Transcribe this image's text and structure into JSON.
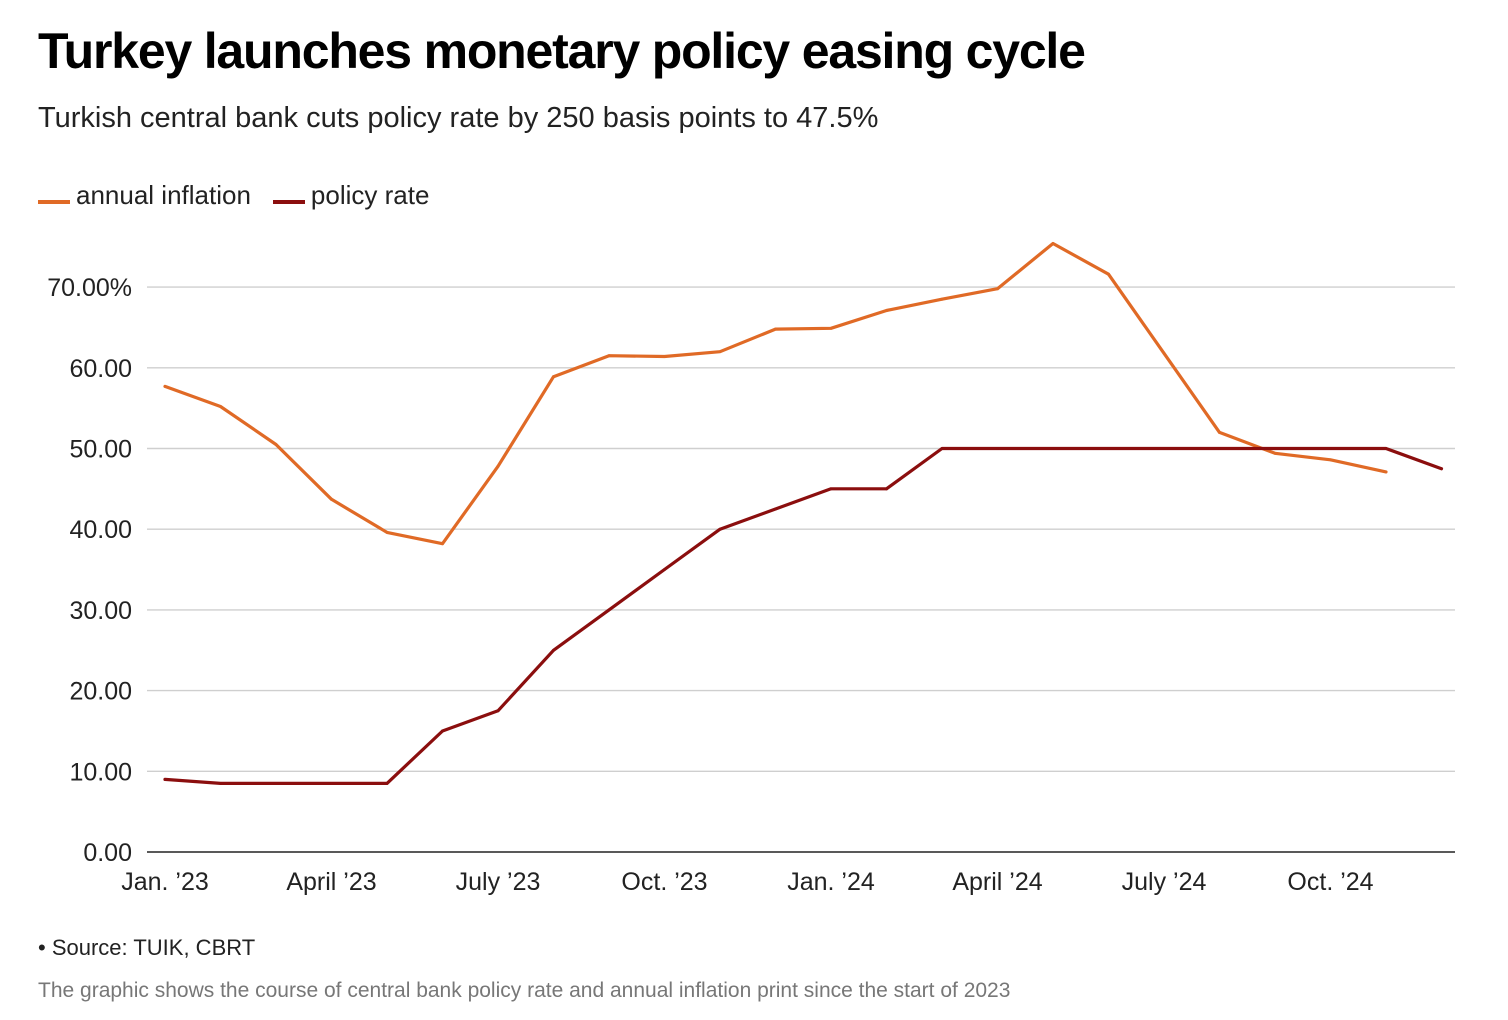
{
  "chart_data": {
    "type": "line",
    "title": "Turkey launches monetary policy easing cycle",
    "subtitle": "Turkish central bank cuts policy rate by 250 basis points to 47.5%",
    "legend_position": "top-left",
    "grid": true,
    "ylim": [
      0,
      70
    ],
    "y_ticks": [
      {
        "value": 70,
        "label": "70.00%"
      },
      {
        "value": 60,
        "label": "60.00"
      },
      {
        "value": 50,
        "label": "50.00"
      },
      {
        "value": 40,
        "label": "40.00"
      },
      {
        "value": 30,
        "label": "30.00"
      },
      {
        "value": 20,
        "label": "20.00"
      },
      {
        "value": 10,
        "label": "10.00"
      },
      {
        "value": 0,
        "label": "0.00"
      }
    ],
    "x": [
      "2023-01",
      "2023-02",
      "2023-03",
      "2023-04",
      "2023-05",
      "2023-06",
      "2023-07",
      "2023-08",
      "2023-09",
      "2023-10",
      "2023-11",
      "2023-12",
      "2024-01",
      "2024-02",
      "2024-03",
      "2024-04",
      "2024-05",
      "2024-06",
      "2024-07",
      "2024-08",
      "2024-09",
      "2024-10",
      "2024-11",
      "2024-12"
    ],
    "x_ticks": [
      {
        "index": 0,
        "label": "Jan. ’23"
      },
      {
        "index": 3,
        "label": "April ’23"
      },
      {
        "index": 6,
        "label": "July ’23"
      },
      {
        "index": 9,
        "label": "Oct. ’23"
      },
      {
        "index": 12,
        "label": "Jan. ’24"
      },
      {
        "index": 15,
        "label": "April ’24"
      },
      {
        "index": 18,
        "label": "July ’24"
      },
      {
        "index": 21,
        "label": "Oct. ’24"
      }
    ],
    "series": [
      {
        "name": "annual inflation",
        "color": "#e06a26",
        "values": [
          57.7,
          55.2,
          50.5,
          43.7,
          39.6,
          38.2,
          47.8,
          58.9,
          61.5,
          61.4,
          62.0,
          64.8,
          64.9,
          67.1,
          68.5,
          69.8,
          75.4,
          71.6,
          61.8,
          52.0,
          49.4,
          48.6,
          47.1,
          null
        ]
      },
      {
        "name": "policy rate",
        "color": "#8b0e0e",
        "values": [
          9.0,
          8.5,
          8.5,
          8.5,
          8.5,
          15.0,
          17.5,
          25.0,
          30.0,
          35.0,
          40.0,
          42.5,
          45.0,
          45.0,
          50.0,
          50.0,
          50.0,
          50.0,
          50.0,
          50.0,
          50.0,
          50.0,
          50.0,
          47.5
        ]
      }
    ]
  },
  "footer": {
    "source": "• Source: TUIK, CBRT",
    "caption": "The graphic shows the course of central bank policy rate and annual inflation print since the start of 2023"
  }
}
